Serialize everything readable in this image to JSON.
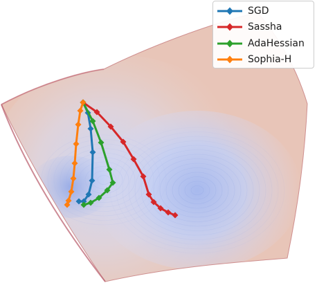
{
  "chart_data": {
    "type": "line",
    "surface": "3d-loss-landscape",
    "surface_colormap": "coolwarm",
    "legend_position": "top-right",
    "grid": false,
    "axes_visible": false,
    "series": [
      {
        "name": "SGD",
        "color": "#1f77b4",
        "marker": "diamond",
        "points": [
          [
            120,
            148
          ],
          [
            127,
            163
          ],
          [
            131,
            186
          ],
          [
            134,
            220
          ],
          [
            133,
            261
          ],
          [
            128,
            281
          ],
          [
            121,
            291
          ],
          [
            114,
            291
          ]
        ]
      },
      {
        "name": "Sassha",
        "color": "#d62728",
        "marker": "diamond",
        "points": [
          [
            120,
            148
          ],
          [
            140,
            162
          ],
          [
            160,
            183
          ],
          [
            178,
            205
          ],
          [
            193,
            230
          ],
          [
            207,
            255
          ],
          [
            215,
            281
          ],
          [
            222,
            292
          ],
          [
            232,
            301
          ],
          [
            243,
            307
          ],
          [
            253,
            311
          ]
        ]
      },
      {
        "name": "AdaHessian",
        "color": "#2ca02c",
        "marker": "diamond",
        "points": [
          [
            120,
            148
          ],
          [
            134,
            175
          ],
          [
            146,
            206
          ],
          [
            158,
            245
          ],
          [
            163,
            264
          ],
          [
            155,
            275
          ],
          [
            143,
            286
          ],
          [
            131,
            293
          ],
          [
            121,
            296
          ]
        ]
      },
      {
        "name": "Sophia-H",
        "color": "#ff7f0e",
        "marker": "diamond",
        "points": [
          [
            120,
            148
          ],
          [
            116,
            160
          ],
          [
            113,
            180
          ],
          [
            110,
            208
          ],
          [
            108,
            236
          ],
          [
            106,
            258
          ],
          [
            103,
            277
          ],
          [
            99,
            290
          ],
          [
            97,
            296
          ]
        ]
      }
    ]
  }
}
